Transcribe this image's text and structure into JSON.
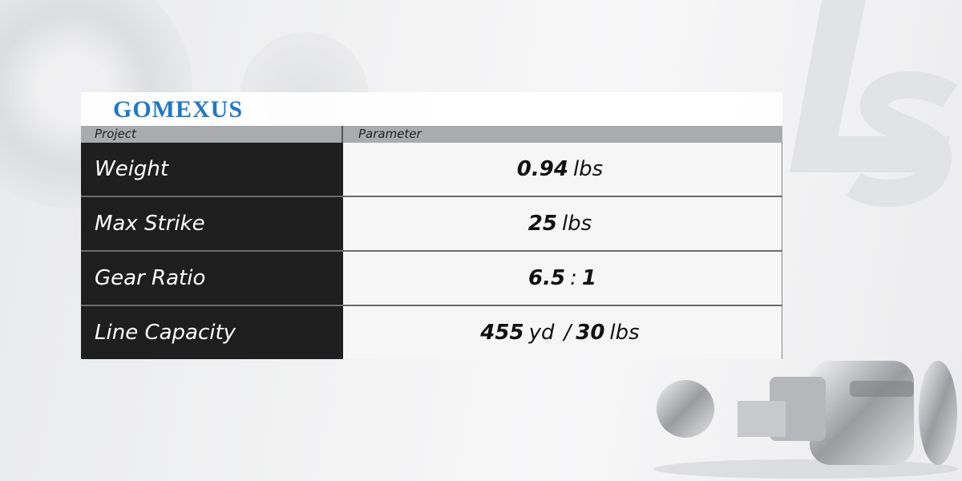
{
  "brand": {
    "logo_text": "GOMEXUS",
    "logo_color": "#1f78c8"
  },
  "table": {
    "headers": [
      "Project",
      "Parameter"
    ],
    "rows": [
      {
        "label": "Weight",
        "value_parts": [
          {
            "t": "0.94",
            "bold": true
          },
          {
            "t": "lbs",
            "bold": false
          }
        ]
      },
      {
        "label": "Max Strike",
        "value_parts": [
          {
            "t": "25",
            "bold": true
          },
          {
            "t": "lbs",
            "bold": false
          }
        ]
      },
      {
        "label": "Gear Ratio",
        "value_parts": [
          {
            "t": "6.5",
            "bold": true
          },
          {
            "t": ":",
            "bold": false
          },
          {
            "t": "1",
            "bold": true
          }
        ]
      },
      {
        "label": "Line Capacity",
        "value_parts": [
          {
            "t": "455",
            "bold": true
          },
          {
            "t": "yd",
            "bold": false
          },
          {
            "t": "/",
            "bold": false
          },
          {
            "t": "30",
            "bold": true
          },
          {
            "t": "lbs",
            "bold": false
          }
        ]
      }
    ]
  }
}
